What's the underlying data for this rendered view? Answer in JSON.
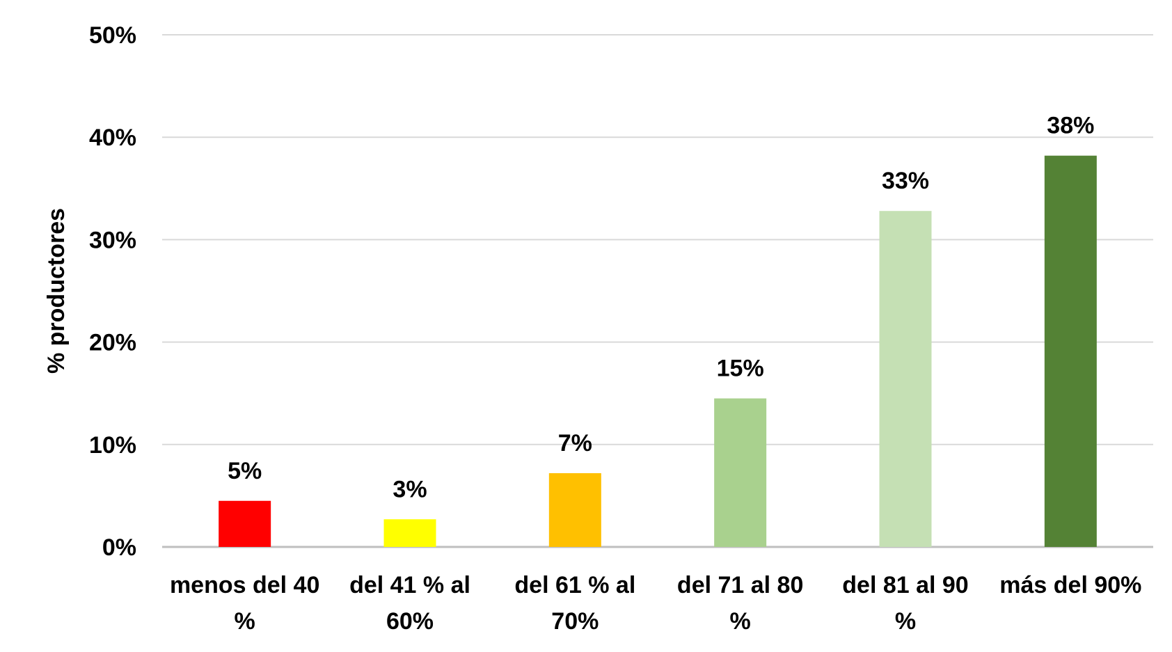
{
  "chart_data": {
    "type": "bar",
    "title": "",
    "xlabel": "",
    "ylabel": "% productores",
    "ylim": [
      0,
      0.5
    ],
    "yticks": [
      0,
      0.1,
      0.2,
      0.3,
      0.4,
      0.5
    ],
    "ytick_labels": [
      "0%",
      "10%",
      "20%",
      "30%",
      "40%",
      "50%"
    ],
    "grid": true,
    "legend": "none",
    "categories": [
      [
        "menos del 40",
        "%"
      ],
      [
        "del 41 % al",
        "60%"
      ],
      [
        "del 61 % al",
        "70%"
      ],
      [
        "del 71 al 80",
        "%"
      ],
      [
        "del 81 al 90",
        "%"
      ],
      [
        "más del 90%"
      ]
    ],
    "values": [
      0.045,
      0.027,
      0.072,
      0.145,
      0.328,
      0.382
    ],
    "data_labels": [
      "5%",
      "3%",
      "7%",
      "15%",
      "33%",
      "38%"
    ],
    "colors": [
      "#ff0000",
      "#ffff00",
      "#ffc000",
      "#a9d18e",
      "#c5e0b4",
      "#548235"
    ],
    "gridline_color": "#d9d9d9",
    "axis_line_color": "#bfbfbf"
  }
}
